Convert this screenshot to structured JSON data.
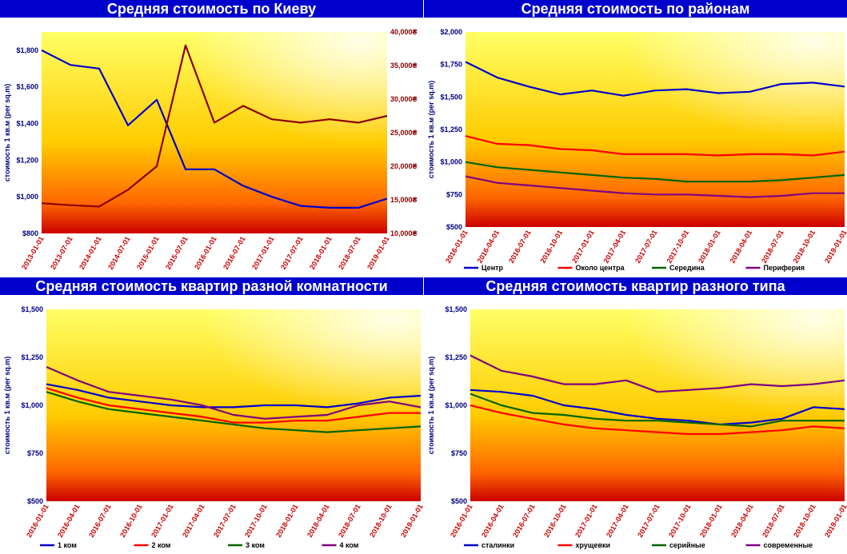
{
  "chart_data": [
    {
      "id": "kiev",
      "type": "line",
      "title": "Средняя стоимость по Киеву",
      "ylabel": "стоимость 1 кв.м (per sq.m)",
      "x": [
        "2013-01-01",
        "2013-07-01",
        "2014-01-01",
        "2014-07-01",
        "2015-01-01",
        "2015-07-01",
        "2016-01-01",
        "2016-07-01",
        "2017-01-01",
        "2017-07-01",
        "2018-01-01",
        "2018-07-01",
        "2019-01-01"
      ],
      "xticks": [
        "2013-01-01",
        "2013-07-01",
        "2014-01-01",
        "2014-07-01",
        "2015-01-01",
        "2015-07-01",
        "2016-01-01",
        "2016-07-01",
        "2017-01-01",
        "2017-07-01",
        "2018-01-01",
        "2018-07-01",
        "2019-01-01"
      ],
      "ylim": [
        800,
        1900
      ],
      "yticks": [
        "$800",
        "$1,000",
        "$1,200",
        "$1,400",
        "$1,600",
        "$1,800"
      ],
      "y2lim": [
        10000,
        40000
      ],
      "y2ticks": [
        "10,000₴",
        "15,000₴",
        "20,000₴",
        "25,000₴",
        "30,000₴",
        "35,000₴",
        "40,000₴"
      ],
      "series": [
        {
          "color": "#0000cc",
          "axis": "left",
          "values": [
            1800,
            1720,
            1700,
            1390,
            1530,
            1150,
            1150,
            1060,
            1000,
            950,
            940,
            940,
            990
          ]
        },
        {
          "color": "#8b0000",
          "axis": "right",
          "values": [
            14500,
            14200,
            14000,
            16500,
            20000,
            38000,
            26500,
            29000,
            27000,
            26500,
            27000,
            26500,
            27500
          ]
        }
      ]
    },
    {
      "id": "districts",
      "type": "line",
      "title": "Средняя стоимость по районам",
      "ylabel": "стоимость 1 кв.м (per sq.m)",
      "x": [
        "2016-01-01",
        "2016-04-01",
        "2016-07-01",
        "2016-10-01",
        "2017-01-01",
        "2017-04-01",
        "2017-07-01",
        "2017-10-01",
        "2018-01-01",
        "2018-04-01",
        "2018-07-01",
        "2018-10-01",
        "2019-01-01"
      ],
      "xticks": [
        "2016-01-01",
        "2016-04-01",
        "2016-07-01",
        "2016-10-01",
        "2017-01-01",
        "2017-04-01",
        "2017-07-01",
        "2017-10-01",
        "2018-01-01",
        "2018-04-01",
        "2018-07-01",
        "2018-10-01",
        "2019-01-01"
      ],
      "ylim": [
        500,
        2000
      ],
      "yticks": [
        "$500",
        "$750",
        "$1,000",
        "$1,250",
        "$1,500",
        "$1,750",
        "$2,000"
      ],
      "series": [
        {
          "name": "Центр",
          "color": "#0000cc",
          "values": [
            1770,
            1650,
            1580,
            1520,
            1550,
            1510,
            1550,
            1560,
            1530,
            1540,
            1600,
            1610,
            1580
          ]
        },
        {
          "name": "Около центра",
          "color": "#ff0000",
          "values": [
            1200,
            1140,
            1130,
            1100,
            1090,
            1060,
            1060,
            1060,
            1050,
            1060,
            1060,
            1050,
            1080
          ]
        },
        {
          "name": "Середина",
          "color": "#006400",
          "values": [
            1000,
            960,
            940,
            920,
            900,
            880,
            870,
            850,
            850,
            850,
            860,
            880,
            900
          ]
        },
        {
          "name": "Периферия",
          "color": "#800080",
          "values": [
            890,
            840,
            820,
            800,
            780,
            760,
            750,
            750,
            740,
            730,
            740,
            760,
            760
          ]
        }
      ],
      "legend": "bottom"
    },
    {
      "id": "rooms",
      "type": "line",
      "title": "Средняя стоимость квартир разной комнатности",
      "ylabel": "стоимость 1 кв.м (per sq.m)",
      "x": [
        "2016-01-01",
        "2016-04-01",
        "2016-07-01",
        "2016-10-01",
        "2017-01-01",
        "2017-04-01",
        "2017-07-01",
        "2017-10-01",
        "2018-01-01",
        "2018-04-01",
        "2018-07-01",
        "2018-10-01",
        "2019-01-01"
      ],
      "xticks": [
        "2016-01-01",
        "2016-04-01",
        "2016-07-01",
        "2016-10-01",
        "2017-01-01",
        "2017-04-01",
        "2017-07-01",
        "2017-10-01",
        "2018-01-01",
        "2018-04-01",
        "2018-07-01",
        "2018-10-01",
        "2019-01-01"
      ],
      "ylim": [
        500,
        1500
      ],
      "yticks": [
        "$500",
        "$750",
        "$1,000",
        "$1,250",
        "$1,500"
      ],
      "series": [
        {
          "name": "1 ком",
          "color": "#0000cc",
          "values": [
            1110,
            1080,
            1040,
            1020,
            1000,
            990,
            990,
            1000,
            1000,
            990,
            1010,
            1040,
            1050
          ]
        },
        {
          "name": "2 ком",
          "color": "#ff0000",
          "values": [
            1090,
            1040,
            1000,
            980,
            960,
            940,
            910,
            910,
            920,
            920,
            940,
            960,
            960
          ]
        },
        {
          "name": "3 ком",
          "color": "#006400",
          "values": [
            1070,
            1020,
            980,
            960,
            940,
            920,
            900,
            880,
            870,
            860,
            870,
            880,
            890
          ]
        },
        {
          "name": "4 ком",
          "color": "#800080",
          "values": [
            1200,
            1130,
            1070,
            1050,
            1030,
            1000,
            950,
            930,
            940,
            950,
            1000,
            1020,
            990
          ]
        }
      ],
      "legend": "bottom"
    },
    {
      "id": "types",
      "type": "line",
      "title": "Средняя стоимость квартир разного типа",
      "ylabel": "стоимость 1 кв.м (per sq.m)",
      "x": [
        "2016-01-01",
        "2016-04-01",
        "2016-07-01",
        "2016-10-01",
        "2017-01-01",
        "2017-04-01",
        "2017-07-01",
        "2017-10-01",
        "2018-01-01",
        "2018-04-01",
        "2018-07-01",
        "2018-10-01",
        "2019-01-01"
      ],
      "xticks": [
        "2016-01-01",
        "2016-04-01",
        "2016-07-01",
        "2016-10-01",
        "2017-01-01",
        "2017-04-01",
        "2017-07-01",
        "2017-10-01",
        "2018-01-01",
        "2018-04-01",
        "2018-07-01",
        "2018-10-01",
        "2019-01-01"
      ],
      "ylim": [
        500,
        1500
      ],
      "yticks": [
        "$500",
        "$750",
        "$1,000",
        "$1,250",
        "$1,500"
      ],
      "series": [
        {
          "name": "сталинки",
          "color": "#0000cc",
          "values": [
            1080,
            1070,
            1050,
            1000,
            980,
            950,
            930,
            920,
            900,
            910,
            930,
            990,
            980
          ]
        },
        {
          "name": "хрущевки",
          "color": "#ff0000",
          "values": [
            1000,
            960,
            930,
            900,
            880,
            870,
            860,
            850,
            850,
            860,
            870,
            890,
            880
          ]
        },
        {
          "name": "серийные",
          "color": "#006400",
          "values": [
            1060,
            1000,
            960,
            950,
            930,
            920,
            920,
            910,
            900,
            890,
            920,
            920,
            920
          ]
        },
        {
          "name": "современные",
          "color": "#800080",
          "values": [
            1260,
            1180,
            1150,
            1110,
            1110,
            1130,
            1070,
            1080,
            1090,
            1110,
            1100,
            1110,
            1130
          ]
        }
      ],
      "legend": "bottom"
    }
  ]
}
